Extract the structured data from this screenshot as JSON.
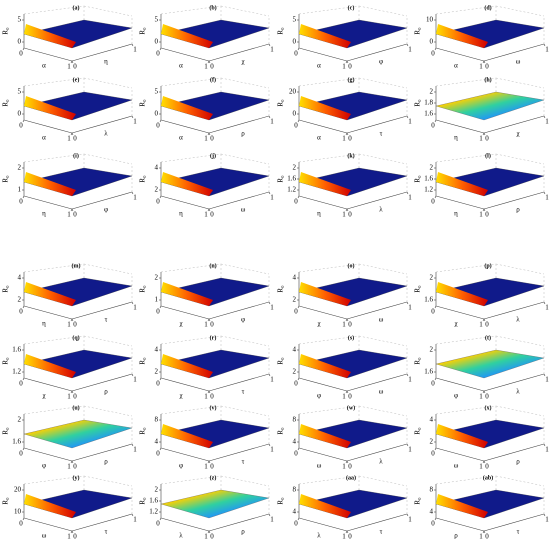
{
  "chart_data": {
    "type": "surface-grid",
    "zlabel": "R₀",
    "panels": [
      {
        "label": "(a)",
        "xlabel": "α",
        "ylabel": "η",
        "zticks": [
          0,
          5
        ],
        "xticks": [
          0,
          1
        ],
        "yticks": [
          0,
          1
        ]
      },
      {
        "label": "(b)",
        "xlabel": "α",
        "ylabel": "χ",
        "zticks": [
          0,
          5
        ],
        "xticks": [
          0,
          1
        ],
        "yticks": [
          0,
          1
        ]
      },
      {
        "label": "(c)",
        "xlabel": "α",
        "ylabel": "φ",
        "zticks": [
          0,
          5
        ],
        "xticks": [
          0,
          1
        ],
        "yticks": [
          0,
          1
        ]
      },
      {
        "label": "(d)",
        "xlabel": "α",
        "ylabel": "ω",
        "zticks": [
          0,
          10
        ],
        "xticks": [
          0,
          1
        ],
        "yticks": [
          0,
          1
        ]
      },
      {
        "label": "(e)",
        "xlabel": "α",
        "ylabel": "λ",
        "zticks": [
          0,
          5
        ],
        "xticks": [
          0,
          1
        ],
        "yticks": [
          0,
          1
        ]
      },
      {
        "label": "(f)",
        "xlabel": "α",
        "ylabel": "ρ",
        "zticks": [
          0,
          5
        ],
        "xticks": [
          0,
          1
        ],
        "yticks": [
          0,
          1
        ]
      },
      {
        "label": "(g)",
        "xlabel": "α",
        "ylabel": "τ",
        "zticks": [
          0,
          20
        ],
        "xticks": [
          0,
          1
        ],
        "yticks": [
          0,
          1
        ]
      },
      {
        "label": "(h)",
        "xlabel": "η",
        "ylabel": "χ",
        "zticks": [
          1.6,
          1.8,
          2
        ],
        "xticks": [
          0,
          1
        ],
        "yticks": [
          0,
          1
        ]
      },
      {
        "label": "(i)",
        "xlabel": "η",
        "ylabel": "φ",
        "zticks": [
          1,
          2
        ],
        "xticks": [
          0,
          1
        ],
        "yticks": [
          0,
          1
        ]
      },
      {
        "label": "(j)",
        "xlabel": "η",
        "ylabel": "ω",
        "zticks": [
          2,
          4
        ],
        "xticks": [
          0,
          1
        ],
        "yticks": [
          0,
          1
        ]
      },
      {
        "label": "(k)",
        "xlabel": "η",
        "ylabel": "λ",
        "zticks": [
          1.2,
          1.6,
          2
        ],
        "xticks": [
          0,
          1
        ],
        "yticks": [
          0,
          1
        ]
      },
      {
        "label": "(l)",
        "xlabel": "η",
        "ylabel": "ρ",
        "zticks": [
          1.2,
          1.6,
          2
        ],
        "xticks": [
          0,
          1
        ],
        "yticks": [
          0,
          1
        ]
      },
      {
        "label": "(m)",
        "xlabel": "η",
        "ylabel": "τ",
        "zticks": [
          2,
          4
        ],
        "xticks": [
          0,
          1
        ],
        "yticks": [
          0,
          1
        ]
      },
      {
        "label": "(n)",
        "xlabel": "χ",
        "ylabel": "φ",
        "zticks": [
          1,
          2
        ],
        "xticks": [
          0,
          1
        ],
        "yticks": [
          0,
          1
        ]
      },
      {
        "label": "(o)",
        "xlabel": "χ",
        "ylabel": "ω",
        "zticks": [
          2,
          4
        ],
        "xticks": [
          0,
          1
        ],
        "yticks": [
          0,
          1
        ]
      },
      {
        "label": "(p)",
        "xlabel": "χ",
        "ylabel": "λ",
        "zticks": [
          1.6,
          2
        ],
        "xticks": [
          0,
          1
        ],
        "yticks": [
          0,
          1
        ]
      },
      {
        "label": "(q)",
        "xlabel": "χ",
        "ylabel": "ρ",
        "zticks": [
          1.2,
          1.6
        ],
        "xticks": [
          0,
          1
        ],
        "yticks": [
          0,
          1
        ]
      },
      {
        "label": "(r)",
        "xlabel": "χ",
        "ylabel": "τ",
        "zticks": [
          2,
          4
        ],
        "xticks": [
          0,
          1
        ],
        "yticks": [
          0,
          1
        ]
      },
      {
        "label": "(s)",
        "xlabel": "φ",
        "ylabel": "ω",
        "zticks": [
          2,
          4
        ],
        "xticks": [
          0,
          1
        ],
        "yticks": [
          0,
          1
        ]
      },
      {
        "label": "(t)",
        "xlabel": "φ",
        "ylabel": "λ",
        "zticks": [
          1.6,
          2
        ],
        "xticks": [
          0,
          1
        ],
        "yticks": [
          0,
          1
        ]
      },
      {
        "label": "(u)",
        "xlabel": "φ",
        "ylabel": "ρ",
        "zticks": [
          1.6,
          2
        ],
        "xticks": [
          0,
          1
        ],
        "yticks": [
          0,
          1
        ]
      },
      {
        "label": "(v)",
        "xlabel": "φ",
        "ylabel": "τ",
        "zticks": [
          4,
          8
        ],
        "xticks": [
          0,
          1
        ],
        "yticks": [
          0,
          1
        ]
      },
      {
        "label": "(w)",
        "xlabel": "ω",
        "ylabel": "λ",
        "zticks": [
          4,
          8
        ],
        "xticks": [
          0,
          1
        ],
        "yticks": [
          0,
          1
        ]
      },
      {
        "label": "(x)",
        "xlabel": "ω",
        "ylabel": "ρ",
        "zticks": [
          2,
          4
        ],
        "xticks": [
          0,
          1
        ],
        "yticks": [
          0,
          1
        ]
      },
      {
        "label": "(y)",
        "xlabel": "ω",
        "ylabel": "τ",
        "zticks": [
          10,
          20
        ],
        "xticks": [
          0,
          1
        ],
        "yticks": [
          0,
          1
        ]
      },
      {
        "label": "(z)",
        "xlabel": "λ",
        "ylabel": "ρ",
        "zticks": [
          1.2,
          1.6,
          2
        ],
        "xticks": [
          0,
          1
        ],
        "yticks": [
          0,
          1
        ]
      },
      {
        "label": "(aa)",
        "xlabel": "λ",
        "ylabel": "τ",
        "zticks": [
          4,
          8
        ],
        "xticks": [
          0,
          1
        ],
        "yticks": [
          0,
          1
        ]
      },
      {
        "label": "(ab)",
        "xlabel": "ρ",
        "ylabel": "τ",
        "zticks": [
          4,
          8
        ],
        "xticks": [
          0,
          1
        ],
        "yticks": [
          0,
          1
        ]
      }
    ]
  }
}
